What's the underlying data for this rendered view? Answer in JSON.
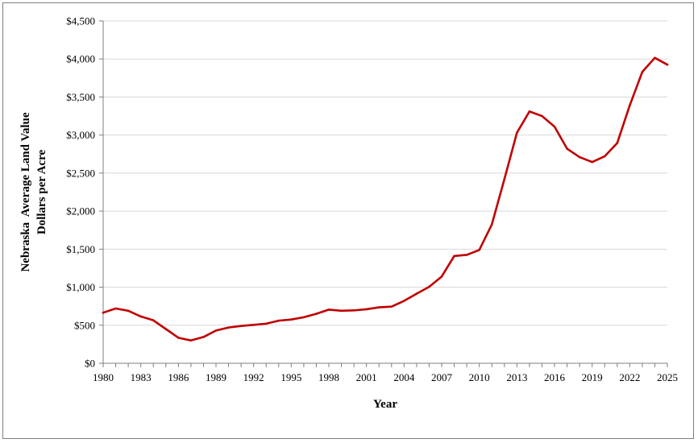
{
  "chart_data": {
    "type": "line",
    "title": "",
    "xlabel": "Year",
    "ylabel_lines": [
      "Nebraska  Average Land Value",
      "Dollars per Acre"
    ],
    "xlim": [
      1980,
      2025
    ],
    "ylim": [
      0,
      4500
    ],
    "ystep": 500,
    "y_tick_labels": [
      "$0",
      "$500",
      "$1,000",
      "$1,500",
      "$2,000",
      "$2,500",
      "$3,000",
      "$3,500",
      "$4,000",
      "$4,500"
    ],
    "x_tick_labels": [
      "1980",
      "1983",
      "1986",
      "1989",
      "1992",
      "1995",
      "1998",
      "2001",
      "2004",
      "2007",
      "2010",
      "2013",
      "2016",
      "2019",
      "2022",
      "2025"
    ],
    "grid": true,
    "line_color": "#c00000",
    "series": [
      {
        "x": [
          1980,
          1981,
          1982,
          1983,
          1984,
          1985,
          1986,
          1987,
          1988,
          1989,
          1990,
          1991,
          1992,
          1993,
          1994,
          1995,
          1996,
          1997,
          1998,
          1999,
          2000,
          2001,
          2002,
          2003,
          2004,
          2005,
          2006,
          2007,
          2008,
          2009,
          2010,
          2011,
          2012,
          2013,
          2014,
          2015,
          2016,
          2017,
          2018,
          2019,
          2020,
          2021,
          2022,
          2023,
          2024,
          2025
        ],
        "values": [
          665,
          720,
          690,
          615,
          565,
          450,
          335,
          300,
          345,
          430,
          470,
          490,
          505,
          520,
          560,
          575,
          605,
          650,
          705,
          690,
          695,
          710,
          735,
          745,
          820,
          915,
          1005,
          1140,
          1410,
          1425,
          1490,
          1825,
          2420,
          3030,
          3310,
          3250,
          3110,
          2820,
          2710,
          2645,
          2720,
          2895,
          3390,
          3830,
          4015,
          3925
        ]
      }
    ]
  }
}
